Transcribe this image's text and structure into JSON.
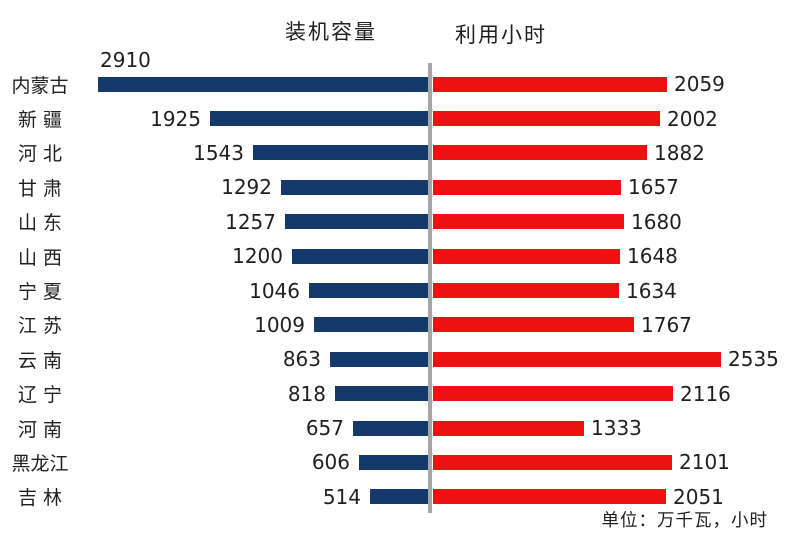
{
  "footer": "单位：万千瓦，小时",
  "colors": {
    "capacity_bar": "#16396b",
    "hours_bar": "#ee1111",
    "axis_line": "#a6a6a6",
    "text": "#1f1f1f"
  },
  "chart_data": {
    "type": "bar",
    "orientation": "horizontal-diverging",
    "categories": [
      "内蒙古",
      "新 疆",
      "河 北",
      "甘 肃",
      "山 东",
      "山 西",
      "宁 夏",
      "江 苏",
      "云 南",
      "辽 宁",
      "河 南",
      "黑龙江",
      "吉 林"
    ],
    "series": [
      {
        "name": "装机容量",
        "side": "left",
        "values": [
          2910,
          1925,
          1543,
          1292,
          1257,
          1200,
          1046,
          1009,
          863,
          818,
          657,
          606,
          514
        ]
      },
      {
        "name": "利用小时",
        "side": "right",
        "values": [
          2059,
          2002,
          1882,
          1657,
          1680,
          1648,
          1634,
          1767,
          2535,
          2116,
          1333,
          2101,
          2051
        ]
      }
    ],
    "left_axis_max": 2910,
    "right_axis_max": 2535,
    "value_labels_shown": true,
    "gridlines": false,
    "unit_note": "单位：万千瓦，小时",
    "title": ""
  }
}
